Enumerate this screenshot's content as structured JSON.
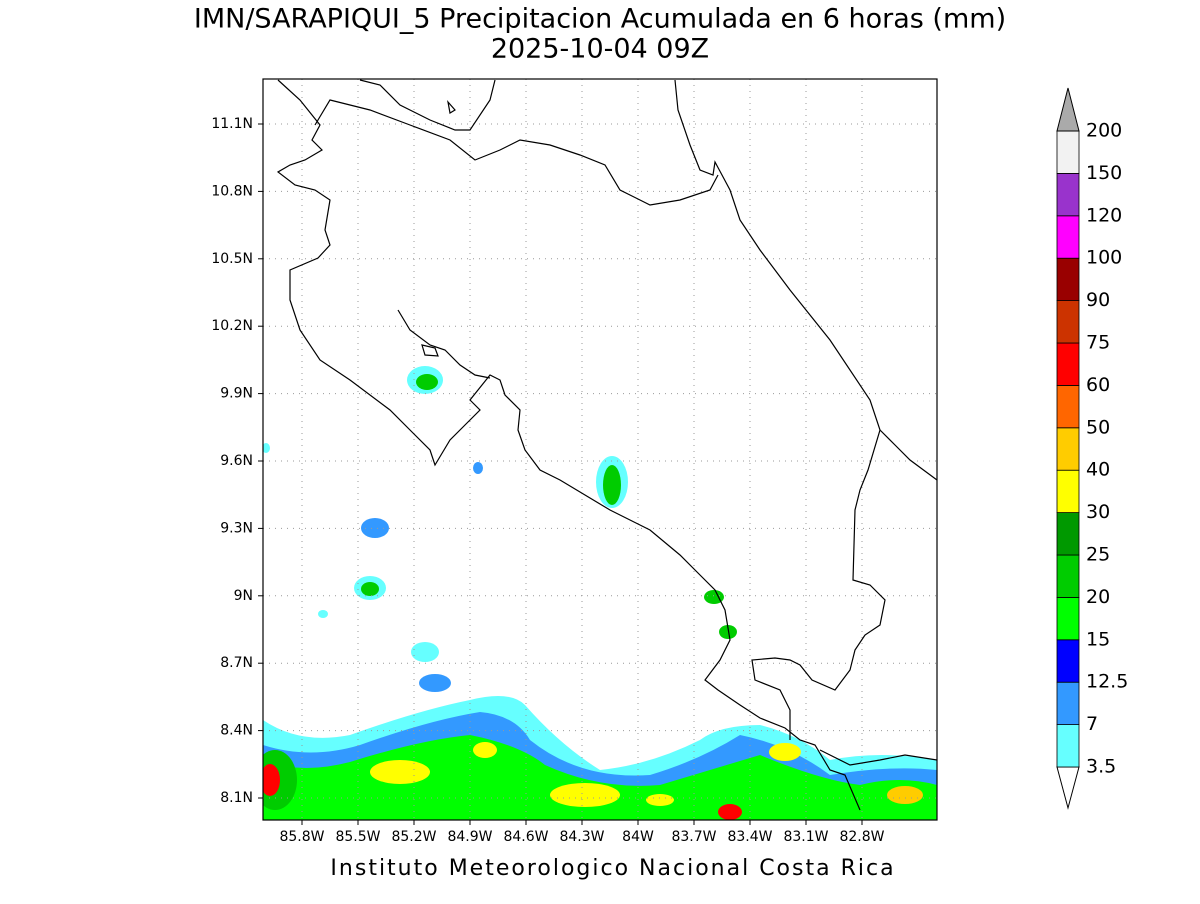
{
  "title": [
    "IMN/SARAPIQUI_5 Precipitacion Acumulada en 6 horas (mm)",
    "2025-10-04 09Z"
  ],
  "map": {
    "lat_ticks": [
      "11.1N",
      "10.8N",
      "10.5N",
      "10.2N",
      "9.9N",
      "9.6N",
      "9.3N",
      "9N",
      "8.7N",
      "8.4N",
      "8.1N"
    ],
    "lon_ticks": [
      "85.8W",
      "85.5W",
      "85.2W",
      "84.9W",
      "84.6W",
      "84.3W",
      "84W",
      "83.7W",
      "83.4W",
      "83.1W",
      "82.8W"
    ],
    "colorbar": {
      "levels": [
        3.5,
        7,
        12.5,
        15,
        20,
        25,
        30,
        40,
        50,
        60,
        75,
        90,
        100,
        120,
        150,
        200
      ],
      "colors": [
        "#ffffff",
        "#66ffff",
        "#3399ff",
        "#0000ff",
        "#00ff00",
        "#00cc00",
        "#009900",
        "#ffff00",
        "#ffcc00",
        "#ff6600",
        "#ff0000",
        "#cc3300",
        "#990000",
        "#ff00ff",
        "#9933cc",
        "#f2f2f2",
        "#aaaaaa"
      ]
    }
  },
  "footer": "Instituto Meteorologico Nacional Costa Rica"
}
